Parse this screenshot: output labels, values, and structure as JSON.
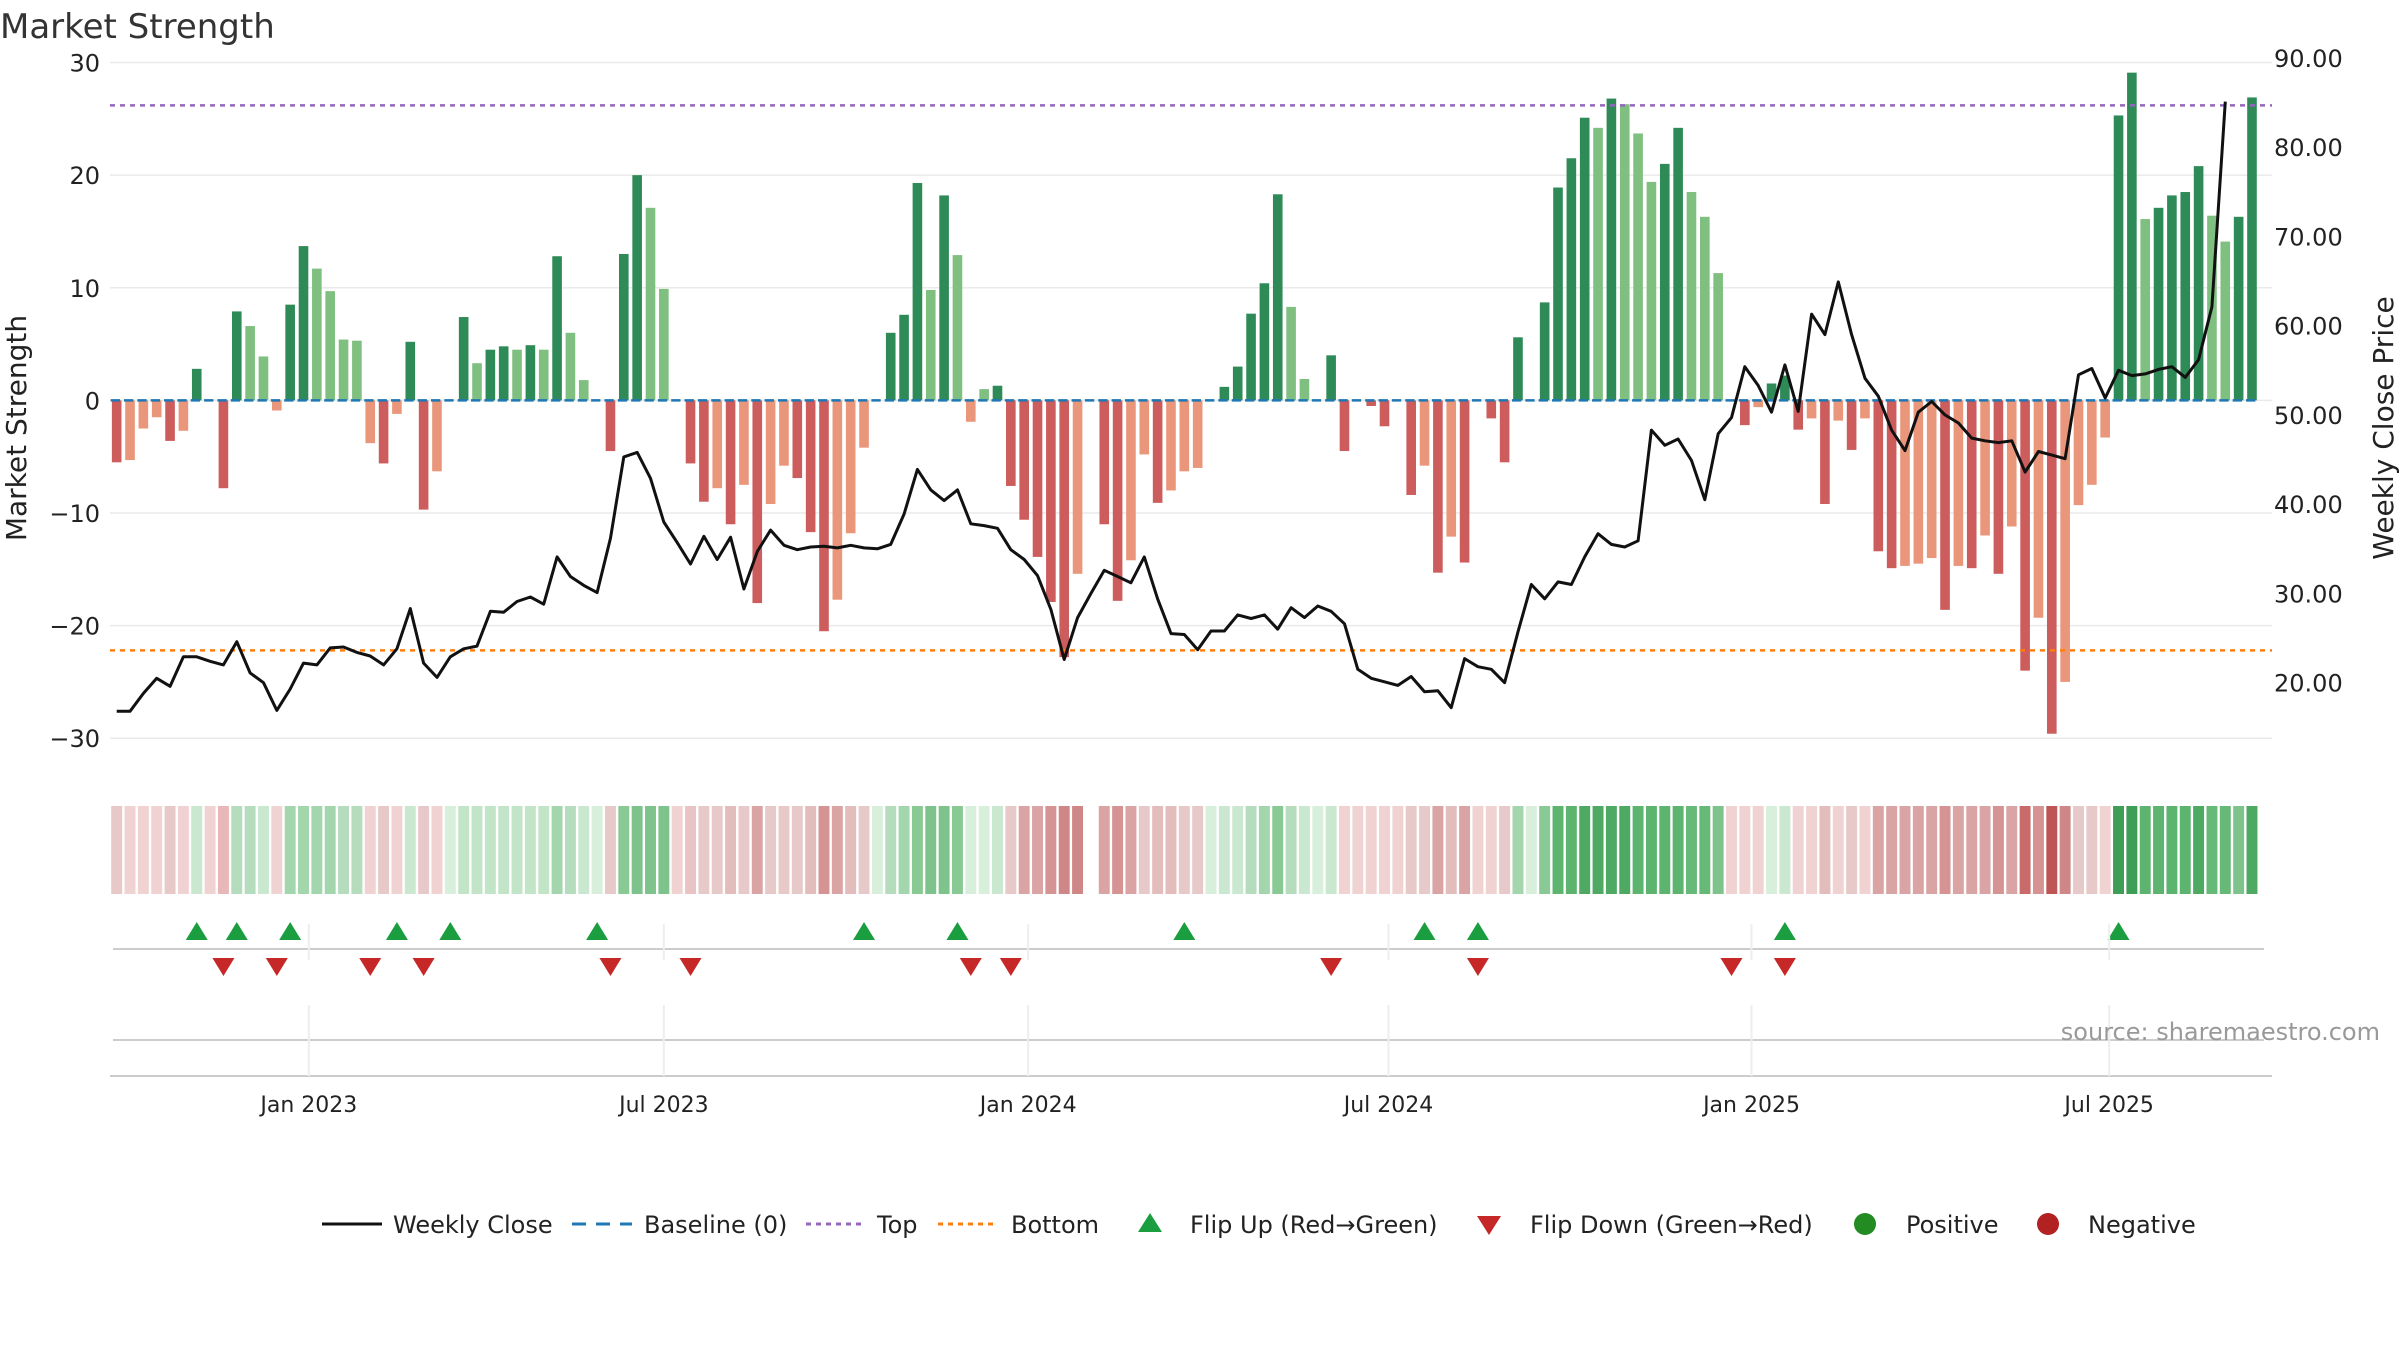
{
  "chart_data": {
    "type": "bar",
    "title": "Market Strength",
    "ylabel": "Market Strength",
    "y2label": "Weekly Close Price",
    "ylim": [
      -33,
      32
    ],
    "y2lim": [
      10,
      92
    ],
    "yticks": [
      30,
      20,
      10,
      0,
      -10,
      -20,
      -30
    ],
    "ytick_labels": [
      "30",
      "20",
      "10",
      "0",
      "−10",
      "−20",
      "−30"
    ],
    "y2ticks": [
      90,
      80,
      70,
      60,
      50,
      40,
      30,
      20
    ],
    "y2tick_labels": [
      "90.00",
      "80.00",
      "70.00",
      "60.00",
      "50.00",
      "40.00",
      "30.00",
      "20.00"
    ],
    "x_start": "2022-10-03",
    "x_range_weeks": [
      -0.5,
      161.5
    ],
    "xticks": [
      {
        "label": "Jan 2023",
        "week": 14.4
      },
      {
        "label": "Jul 2023",
        "week": 41.0
      },
      {
        "label": "Jan 2024",
        "week": 68.3
      },
      {
        "label": "Jul 2024",
        "week": 95.3
      },
      {
        "label": "Jan 2025",
        "week": 122.5
      },
      {
        "label": "Jul 2025",
        "week": 149.3
      }
    ],
    "top_level": 26.2,
    "bottom_level": -22.2,
    "series": [
      {
        "name": "Market Strength",
        "kind": "bar",
        "values": [
          -5.5,
          -5.3,
          -2.5,
          -1.5,
          -3.6,
          -2.7,
          2.8,
          0,
          -7.8,
          7.9,
          6.6,
          3.9,
          -0.9,
          8.5,
          13.7,
          11.7,
          9.7,
          5.4,
          5.3,
          -3.8,
          -5.6,
          -1.2,
          5.2,
          -9.7,
          -6.3,
          0,
          7.4,
          3.3,
          4.5,
          4.8,
          4.5,
          4.9,
          4.5,
          12.8,
          6.0,
          1.8,
          0,
          -4.5,
          13.0,
          20.0,
          17.1,
          9.9,
          0,
          -5.6,
          -9.0,
          -7.8,
          -11.0,
          -7.5,
          -18.0,
          -9.2,
          -5.8,
          -6.9,
          -11.7,
          -20.5,
          -17.7,
          -11.8,
          -4.2,
          0,
          6.0,
          7.6,
          19.3,
          9.8,
          18.2,
          12.9,
          -1.9,
          1.0,
          1.3,
          -7.6,
          -10.6,
          -13.9,
          -17.9,
          -22.8,
          -15.4,
          0,
          -11.0,
          -17.8,
          -14.2,
          -4.8,
          -9.1,
          -8.0,
          -6.3,
          -6.0,
          0,
          1.2,
          3.0,
          7.7,
          10.4,
          18.3,
          8.3,
          1.9,
          0,
          4.0,
          -4.5,
          0,
          -0.5,
          -2.3,
          0,
          -8.4,
          -5.8,
          -15.3,
          -12.1,
          -14.4,
          0,
          -1.6,
          -5.5,
          5.6,
          0,
          8.7,
          18.9,
          21.5,
          25.1,
          24.2,
          26.8,
          26.3,
          23.7,
          19.4,
          21.0,
          24.2,
          18.5,
          16.3,
          11.3,
          0,
          -2.2,
          -0.6,
          1.5,
          2.2,
          -2.6,
          -1.6,
          -9.2,
          -1.8,
          -4.4,
          -1.6,
          -13.4,
          -14.9,
          -14.7,
          -14.5,
          -14.0,
          -18.6,
          -14.7,
          -14.9,
          -12.0,
          -15.4,
          -11.2,
          -24.0,
          -19.3,
          -29.6,
          -25.0,
          -9.3,
          -7.5,
          -3.3,
          25.3,
          29.1,
          16.1,
          17.1,
          18.2,
          18.5,
          20.8,
          16.4,
          14.1,
          16.3,
          26.9
        ]
      },
      {
        "name": "Weekly Close",
        "kind": "line",
        "axis": "y2",
        "values": [
          16.8,
          16.8,
          18.8,
          20.5,
          19.6,
          22.9,
          22.9,
          22.4,
          22.0,
          24.6,
          21.1,
          20.0,
          16.9,
          19.3,
          22.2,
          22.0,
          23.9,
          24.0,
          23.4,
          23.0,
          22.0,
          23.8,
          28.3,
          22.2,
          20.6,
          22.9,
          23.8,
          24.1,
          28.0,
          27.9,
          29.1,
          29.6,
          28.8,
          34.1,
          31.9,
          30.9,
          30.1,
          36.2,
          45.3,
          45.8,
          42.9,
          38.0,
          35.7,
          33.3,
          36.4,
          33.8,
          36.3,
          30.5,
          34.7,
          37.1,
          35.4,
          34.9,
          35.2,
          35.3,
          35.1,
          35.4,
          35.1,
          35.0,
          35.5,
          38.9,
          43.9,
          41.6,
          40.4,
          41.6,
          37.8,
          37.6,
          37.3,
          34.9,
          33.8,
          32.0,
          28.2,
          22.6,
          27.3,
          30.0,
          32.6,
          31.9,
          31.2,
          34.1,
          29.4,
          25.5,
          25.4,
          23.7,
          25.8,
          25.8,
          27.6,
          27.2,
          27.6,
          26.0,
          28.4,
          27.3,
          28.6,
          28.0,
          26.6,
          21.5,
          20.5,
          20.1,
          19.7,
          20.7,
          19.0,
          19.1,
          17.2,
          22.7,
          21.8,
          21.5,
          20.0,
          25.7,
          31.0,
          29.4,
          31.3,
          31.0,
          34.1,
          36.7,
          35.5,
          35.2,
          35.9,
          48.3,
          46.6,
          47.3,
          44.9,
          40.5,
          47.9,
          49.7,
          55.4,
          53.3,
          50.3,
          55.6,
          50.4,
          61.3,
          59.0,
          64.9,
          59.0,
          54.1,
          52.1,
          48.3,
          46.0,
          50.3,
          51.5,
          50.0,
          49.1,
          47.4,
          47.1,
          46.9,
          47.1,
          43.6,
          45.9,
          45.5,
          45.1,
          54.5,
          55.2,
          51.9,
          55.0,
          54.4,
          54.6,
          55.1,
          55.4,
          54.2,
          56.2,
          62.1,
          85.1
        ]
      }
    ],
    "strip_colors": [
      "#e8c9c9",
      "#f0d2d2",
      "#f0d2d2",
      "#f0d2d2",
      "#e8c9c9",
      "#f0d2d2",
      "#c9e8cf",
      "#f0d2d2",
      "#e8b7b7",
      "#b5dcbc",
      "#b5dcbc",
      "#c9e8cf",
      "#f0d2d2",
      "#a3d6ad",
      "#a3d6ad",
      "#a3d6ad",
      "#a3d6ad",
      "#b5dcbc",
      "#b5dcbc",
      "#f0d2d2",
      "#e8c9c9",
      "#f0d2d2",
      "#c9e8cf",
      "#e8c9c9",
      "#f0d2d2",
      "#d7efdb",
      "#c2e5c8",
      "#c2e5c8",
      "#c2e5c8",
      "#c2e5c8",
      "#c2e5c8",
      "#c2e5c8",
      "#c2e5c8",
      "#a3d6ad",
      "#b5dcbc",
      "#c9e8cf",
      "#d7efdb",
      "#e8c9c9",
      "#88c994",
      "#7fc38c",
      "#7fc38c",
      "#7fc38c",
      "#f0d2d2",
      "#eac4c4",
      "#e8c9c9",
      "#e8c9c9",
      "#e3bcbc",
      "#e8c9c9",
      "#dba4a4",
      "#e8c9c9",
      "#e8c9c9",
      "#e8c9c9",
      "#e3bcbc",
      "#d69393",
      "#dba4a4",
      "#e3bcbc",
      "#e8c9c9",
      "#d7efdb",
      "#b5dcbc",
      "#a3d6ad",
      "#88c994",
      "#7fc38c",
      "#7fc38c",
      "#88c994",
      "#d7efdb",
      "#d7efdb",
      "#c9e8cf",
      "#e8c9c9",
      "#dba4a4",
      "#dba4a4",
      "#d69393",
      "#cf8686",
      "#cf8686",
      "#ffffff",
      "#dba4a4",
      "#d69393",
      "#dba4a4",
      "#e8c9c9",
      "#e3bcbc",
      "#e3bcbc",
      "#e8c9c9",
      "#e8c9c9",
      "#d7efdb",
      "#c9e8cf",
      "#c9e8cf",
      "#b5dcbc",
      "#a3d6ad",
      "#88c994",
      "#b5dcbc",
      "#c9e8cf",
      "#d7efdb",
      "#c9e8cf",
      "#f0d2d2",
      "#f0d2d2",
      "#f0d2d2",
      "#f0d2d2",
      "#f0d2d2",
      "#e8c9c9",
      "#e8c9c9",
      "#dba4a4",
      "#e3bcbc",
      "#dba4a4",
      "#f0d2d2",
      "#f0d2d2",
      "#e8c9c9",
      "#a3d6ad",
      "#d7efdb",
      "#88c994",
      "#5cb46e",
      "#5cb46e",
      "#4ea962",
      "#4ea962",
      "#4ea962",
      "#4ea962",
      "#5cb46e",
      "#5cb46e",
      "#5cb46e",
      "#5cb46e",
      "#66b977",
      "#66b977",
      "#7fc38c",
      "#f0d2d2",
      "#f0d2d2",
      "#f0d2d2",
      "#d7efdb",
      "#c9e8cf",
      "#f0d2d2",
      "#f0d2d2",
      "#e3bcbc",
      "#f0d2d2",
      "#e8c9c9",
      "#f0d2d2",
      "#dba4a4",
      "#dba4a4",
      "#dba4a4",
      "#dba4a4",
      "#dba4a4",
      "#d69393",
      "#dba4a4",
      "#dba4a4",
      "#dba4a4",
      "#d69393",
      "#dba4a4",
      "#c96b6b",
      "#d69393",
      "#bf5656",
      "#cf8686",
      "#e8c9c9",
      "#e8c9c9",
      "#f0d2d2",
      "#3f9e55",
      "#3f9e55",
      "#5cb46e",
      "#5cb46e",
      "#5cb46e",
      "#5cb46e",
      "#4ea962",
      "#66b977",
      "#66b977",
      "#7fc38c",
      "#4ea962"
    ],
    "flip_up_weeks": [
      6,
      9,
      13,
      21,
      25,
      36,
      56,
      63,
      80,
      98,
      102,
      125,
      150
    ],
    "flip_down_weeks": [
      8,
      12,
      19,
      23,
      37,
      43,
      64,
      67,
      91,
      102,
      121,
      125
    ],
    "legend": [
      "Weekly Close",
      "Baseline (0)",
      "Top",
      "Bottom",
      "Flip Up (Red→Green)",
      "Flip Down (Green→Red)",
      "Positive",
      "Negative"
    ],
    "annotation": "source: sharemaestro.com",
    "colors": {
      "bull_strong": "#2e8b57",
      "bull_light": "#7fbf7f",
      "bear_strong": "#cd5c5c",
      "bear_light": "#e9967a",
      "line": "#111111",
      "baseline": "#1f77b4",
      "top": "#9467bd",
      "bottom": "#ff7f0e",
      "flip_up": "#1a9e3f",
      "flip_down": "#c62828",
      "positive": "#228b22",
      "negative": "#b22222",
      "grid": "#eaeaea",
      "axis_text": "#222222"
    }
  }
}
